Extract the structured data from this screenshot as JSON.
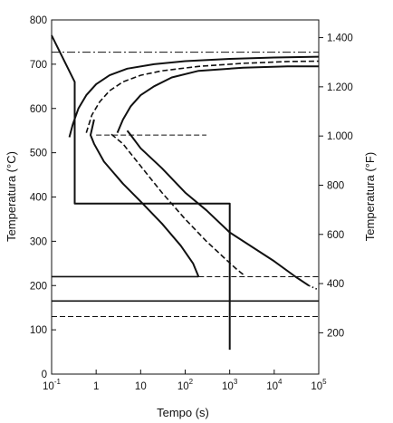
{
  "chart_data": {
    "type": "line",
    "xlabel": "Tempo (s)",
    "ylabel": "Temperatura (°C)",
    "ylabel_right": "Temperatura (°F)",
    "xscale": "log",
    "xlim": [
      0.1,
      100000
    ],
    "ylim": [
      0,
      800
    ],
    "grid": false,
    "x_ticks": [
      {
        "value": 0.1,
        "base": "10",
        "exp": "-1"
      },
      {
        "value": 1,
        "base": "1",
        "exp": ""
      },
      {
        "value": 10,
        "base": "10",
        "exp": ""
      },
      {
        "value": 100,
        "base": "10",
        "exp": "2"
      },
      {
        "value": 1000,
        "base": "10",
        "exp": "3"
      },
      {
        "value": 10000,
        "base": "10",
        "exp": "4"
      },
      {
        "value": 100000,
        "base": "10",
        "exp": "5"
      }
    ],
    "y_ticks": [
      "0",
      "100",
      "200",
      "300",
      "400",
      "500",
      "600",
      "700",
      "800"
    ],
    "right_ticks": [
      {
        "label": "200",
        "degF": 200
      },
      {
        "label": "400",
        "degF": 400
      },
      {
        "label": "600",
        "degF": 600
      },
      {
        "label": "800",
        "degF": 800
      },
      {
        "label": "1.000",
        "degF": 1000
      },
      {
        "label": "1.200",
        "degF": 1200
      },
      {
        "label": "1.400",
        "degF": 1400
      }
    ],
    "series": [
      {
        "style": "solid",
        "points": [
          [
            0.25,
            535
          ],
          [
            0.3,
            565
          ],
          [
            0.4,
            600
          ],
          [
            0.6,
            630
          ],
          [
            1,
            655
          ],
          [
            2,
            675
          ],
          [
            5,
            690
          ],
          [
            20,
            700
          ],
          [
            100,
            707
          ],
          [
            1000,
            712
          ],
          [
            10000,
            715
          ],
          [
            100000,
            717
          ]
        ]
      },
      {
        "style": "solid",
        "points": [
          [
            200,
            220
          ],
          [
            150,
            250
          ],
          [
            80,
            290
          ],
          [
            30,
            340
          ],
          [
            10,
            390
          ],
          [
            4,
            430
          ],
          [
            1.5,
            480
          ],
          [
            0.9,
            520
          ],
          [
            0.75,
            540
          ],
          [
            0.9,
            575
          ]
        ]
      },
      {
        "style": "dashed",
        "points": [
          [
            0.6,
            545
          ],
          [
            0.8,
            585
          ],
          [
            1.2,
            615
          ],
          [
            2,
            640
          ],
          [
            4,
            660
          ],
          [
            10,
            675
          ],
          [
            30,
            685
          ],
          [
            200,
            695
          ],
          [
            2000,
            702
          ],
          [
            20000,
            706
          ],
          [
            100000,
            707
          ]
        ]
      },
      {
        "style": "dashed",
        "points": [
          [
            2000,
            225
          ],
          [
            1500,
            235
          ],
          [
            800,
            260
          ],
          [
            300,
            300
          ],
          [
            100,
            350
          ],
          [
            30,
            410
          ],
          [
            10,
            470
          ],
          [
            4,
            520
          ],
          [
            2,
            545
          ]
        ]
      },
      {
        "style": "solid",
        "points": [
          [
            3,
            545
          ],
          [
            4,
            575
          ],
          [
            6,
            605
          ],
          [
            10,
            630
          ],
          [
            20,
            650
          ],
          [
            50,
            670
          ],
          [
            200,
            685
          ],
          [
            2000,
            692
          ],
          [
            20000,
            695
          ],
          [
            100000,
            695
          ]
        ]
      },
      {
        "style": "solid",
        "points": [
          [
            1000,
            320
          ],
          [
            300,
            370
          ],
          [
            100,
            410
          ],
          [
            30,
            465
          ],
          [
            10,
            510
          ],
          [
            6,
            540
          ],
          [
            5,
            550
          ]
        ]
      },
      {
        "style": "solid",
        "points": [
          [
            0.1,
            765
          ],
          [
            0.33,
            660
          ],
          [
            0.33,
            385
          ],
          [
            1000,
            385
          ],
          [
            1000,
            55
          ]
        ]
      },
      {
        "style": "solid",
        "points": [
          [
            1000,
            320
          ],
          [
            10000,
            255
          ],
          [
            30000,
            220
          ],
          [
            60000,
            200
          ]
        ]
      },
      {
        "style": "dotted",
        "points": [
          [
            60000,
            200
          ],
          [
            100000,
            190
          ]
        ]
      }
    ],
    "reference_lines": [
      {
        "y": 727,
        "style": "dash-dot"
      },
      {
        "y": 540,
        "style": "dashed",
        "x_from": 1,
        "x_to": 300
      },
      {
        "y": 220,
        "style": "solid",
        "x_from": 0.1,
        "x_to": 200
      },
      {
        "y": 220,
        "style": "dashed",
        "x_from": 200,
        "x_to": 100000
      },
      {
        "y": 165,
        "style": "solid"
      },
      {
        "y": 130,
        "style": "dashed"
      }
    ]
  }
}
